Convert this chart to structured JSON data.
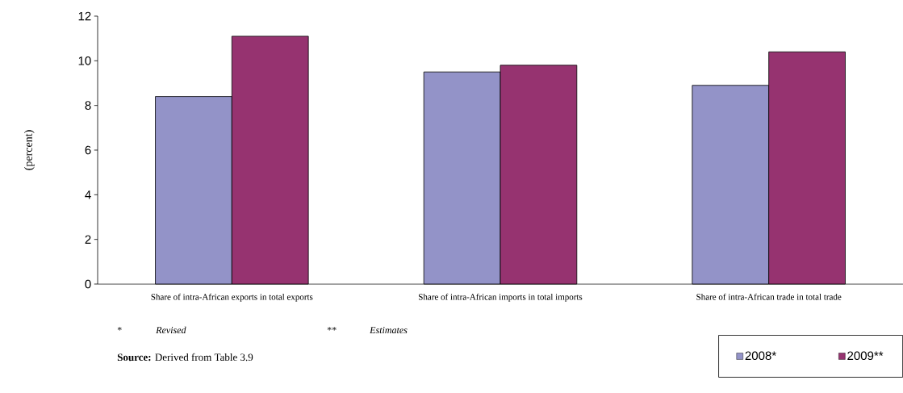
{
  "chart_data": {
    "type": "bar",
    "ylabel": "(percent)",
    "categories": [
      "Share of intra-African exports in total exports",
      "Share of intra-African imports in total imports",
      "Share of intra-African trade in total trade"
    ],
    "series": [
      {
        "name": "2008*",
        "color": "#9393c8",
        "values": [
          8.4,
          9.5,
          8.9
        ]
      },
      {
        "name": "2009**",
        "color": "#963370",
        "values": [
          11.1,
          9.8,
          10.4
        ]
      }
    ],
    "ylim": [
      0,
      12
    ],
    "yticks": [
      0,
      2,
      4,
      6,
      8,
      10,
      12
    ],
    "grid": false,
    "legend": "bottom right",
    "annotations": [
      "*",
      "*Revised*",
      "**",
      "*Estimates*",
      "**Source:** Derived from Table 3.9"
    ]
  }
}
